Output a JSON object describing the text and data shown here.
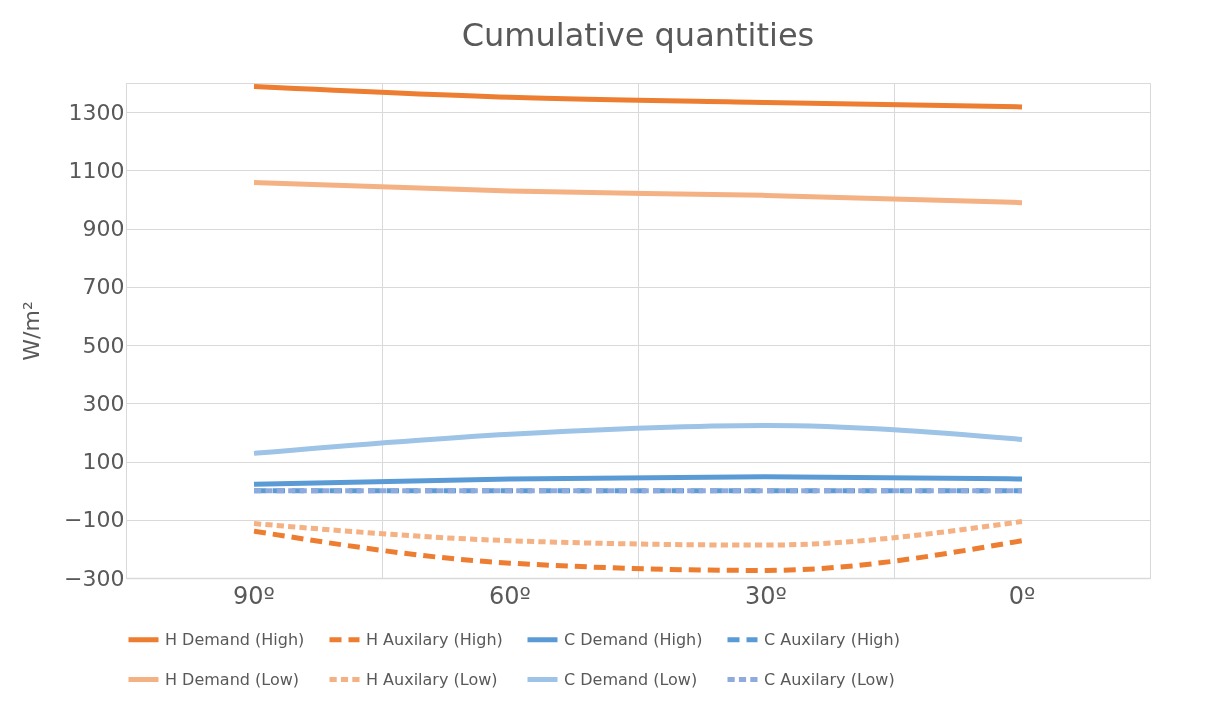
{
  "chart_data": {
    "type": "line",
    "title": "Cumulative quantities",
    "ylabel": "W/m²",
    "categories": [
      "90º",
      "60º",
      "30º",
      "0º"
    ],
    "ylim": [
      -300,
      1400
    ],
    "yticks": [
      -300,
      -100,
      100,
      300,
      500,
      700,
      900,
      1100,
      1300
    ],
    "grid": true,
    "legend": "bottom",
    "series": [
      {
        "name": "H Demand (High)",
        "color": "#ed7d31",
        "line_style": "solid",
        "values": [
          1388,
          1351,
          1333,
          1318
        ]
      },
      {
        "name": "H Auxilary (High)",
        "color": "#ed7d31",
        "line_style": "dashed",
        "values": [
          -139,
          -249,
          -274,
          -172
        ]
      },
      {
        "name": "C Demand (High)",
        "color": "#5b9bd5",
        "line_style": "solid",
        "values": [
          22,
          40,
          48,
          40
        ]
      },
      {
        "name": "C Auxilary (High)",
        "color": "#5b9bd5",
        "line_style": "dashed",
        "values": [
          0,
          0,
          0,
          0
        ]
      },
      {
        "name": "H Demand (Low)",
        "color": "#f4b183",
        "line_style": "solid",
        "values": [
          1058,
          1029,
          1014,
          989
        ]
      },
      {
        "name": "H Auxilary (Low)",
        "color": "#f4b183",
        "line_style": "dashed",
        "values": [
          -113,
          -172,
          -187,
          -106
        ]
      },
      {
        "name": "C Demand (Low)",
        "color": "#9dc3e6",
        "line_style": "solid",
        "values": [
          128,
          194,
          224,
          176
        ]
      },
      {
        "name": "C Auxilary (Low)",
        "color": "#8faadc",
        "line_style": "dashed",
        "values": [
          0,
          0,
          0,
          0
        ]
      }
    ]
  }
}
